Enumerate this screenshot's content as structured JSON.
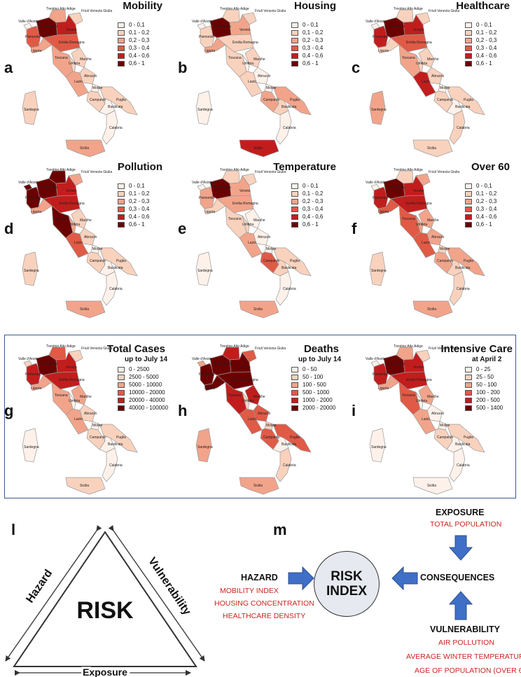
{
  "colors": {
    "c0": "#fdf1ea",
    "c1": "#f9d2bd",
    "c2": "#f2a48a",
    "c3": "#e05a46",
    "c4": "#c21d1d",
    "c5": "#6b0000",
    "frame": "#3c5a8c",
    "accent_red": "#c8251f",
    "arrow_blue": "#3f6fc6"
  },
  "region_names": [
    "Valle d'Aosta",
    "Trentino Alto Adige",
    "Friuli Venezia Giulia",
    "Lombardia",
    "Veneto",
    "Piemonte",
    "Liguria",
    "Emilia Romagna",
    "Toscana",
    "Marche",
    "Umbria",
    "Abruzzo",
    "Lazio",
    "Molise",
    "Campania",
    "Puglia",
    "Basilicata",
    "Calabria",
    "Sicilia",
    "Sardegna"
  ],
  "maps": [
    {
      "id": "mobility",
      "letter": "a",
      "title": "Mobility",
      "subtitle": "",
      "legend": [
        "0 - 0,1",
        "0,1 - 0,2",
        "0,2 - 0,3",
        "0,3 - 0,4",
        "0,4 - 0,6",
        "0,6 - 1"
      ],
      "values": {
        "VdA": 0,
        "TAA": 2,
        "FVG": 1,
        "LOM": 5,
        "VEN": 4,
        "PIE": 3,
        "LIG": 2,
        "EMR": 3,
        "TOS": 2,
        "MAR": 1,
        "UMB": 1,
        "ABR": 1,
        "LAZ": 2,
        "MOL": 0,
        "CAM": 1,
        "PUG": 1,
        "BAS": 0,
        "CAL": 0,
        "SIC": 2,
        "SAR": 1
      }
    },
    {
      "id": "housing",
      "letter": "b",
      "title": "Housing",
      "subtitle": "",
      "legend": [
        "0 - 0,1",
        "0,1 - 0,2",
        "0,2 - 0,3",
        "0,3 - 0,4",
        "0,4 - 0,6",
        "0,6 - 1"
      ],
      "values": {
        "VdA": 0,
        "TAA": 1,
        "FVG": 1,
        "LOM": 5,
        "VEN": 2,
        "PIE": 1,
        "LIG": 2,
        "EMR": 1,
        "TOS": 1,
        "MAR": 1,
        "UMB": 0,
        "ABR": 0,
        "LAZ": 1,
        "MOL": 0,
        "CAM": 2,
        "PUG": 2,
        "BAS": 1,
        "CAL": 0,
        "SIC": 4,
        "SAR": 0
      }
    },
    {
      "id": "healthcare",
      "letter": "c",
      "title": "Healthcare",
      "subtitle": "",
      "legend": [
        "0 - 0,1",
        "0,1 - 0,2",
        "0,2 - 0,3",
        "0,3 - 0,4",
        "0,4 - 0,6",
        "0,6 - 1"
      ],
      "values": {
        "VdA": 0,
        "TAA": 1,
        "FVG": 1,
        "LOM": 5,
        "VEN": 4,
        "PIE": 4,
        "LIG": 1,
        "EMR": 3,
        "TOS": 2,
        "MAR": 1,
        "UMB": 1,
        "ABR": 1,
        "LAZ": 4,
        "MOL": 0,
        "CAM": 1,
        "PUG": 1,
        "BAS": 0,
        "CAL": 1,
        "SIC": 1,
        "SAR": 2
      }
    },
    {
      "id": "pollution",
      "letter": "d",
      "title": "Pollution",
      "subtitle": "",
      "legend": [
        "0 - 0,1",
        "0,1 - 0,2",
        "0,2 - 0,3",
        "0,3 - 0,4",
        "0,4 - 0,6",
        "0,6 - 1"
      ],
      "values": {
        "VdA": 5,
        "TAA": 5,
        "FVG": 2,
        "LOM": 5,
        "VEN": 4,
        "PIE": 5,
        "LIG": 2,
        "EMR": 4,
        "TOS": 5,
        "MAR": 1,
        "UMB": 2,
        "ABR": 1,
        "LAZ": 3,
        "MOL": 0,
        "CAM": 1,
        "PUG": 1,
        "BAS": 0,
        "CAL": 0,
        "SIC": 2,
        "SAR": 1
      }
    },
    {
      "id": "temperature",
      "letter": "e",
      "title": "Temperature",
      "subtitle": "",
      "legend": [
        "0 - 0,1",
        "0,1 - 0,2",
        "0,2 - 0,3",
        "0,3 - 0,4",
        "0,4 - 0,6",
        "0,6 - 1"
      ],
      "values": {
        "VdA": 0,
        "TAA": 1,
        "FVG": 1,
        "LOM": 5,
        "VEN": 2,
        "PIE": 2,
        "LIG": 1,
        "EMR": 2,
        "TOS": 1,
        "MAR": 0,
        "UMB": 1,
        "ABR": 0,
        "LAZ": 2,
        "MOL": 0,
        "CAM": 3,
        "PUG": 1,
        "BAS": 1,
        "CAL": 0,
        "SIC": 2,
        "SAR": 0
      }
    },
    {
      "id": "over60",
      "letter": "f",
      "title": "Over 60",
      "subtitle": "",
      "legend": [
        "0 - 0,1",
        "0,1 - 0,2",
        "0,2 - 0,3",
        "0,3 - 0,4",
        "0,4 - 0,6",
        "0,6 - 1"
      ],
      "values": {
        "VdA": 0,
        "TAA": 1,
        "FVG": 2,
        "LOM": 5,
        "VEN": 4,
        "PIE": 4,
        "LIG": 3,
        "EMR": 4,
        "TOS": 3,
        "MAR": 2,
        "UMB": 2,
        "ABR": 2,
        "LAZ": 3,
        "MOL": 1,
        "CAM": 2,
        "PUG": 2,
        "BAS": 1,
        "CAL": 1,
        "SIC": 2,
        "SAR": 1
      }
    },
    {
      "id": "cases",
      "letter": "g",
      "title": "Total Cases",
      "subtitle": "up to July 14",
      "legend": [
        "0 - 2500",
        "2500 - 5000",
        "5000 - 10000",
        "10000 - 20000",
        "20000 - 40000",
        "40000 - 100000"
      ],
      "values": {
        "VdA": 1,
        "TAA": 3,
        "FVG": 1,
        "LOM": 5,
        "VEN": 4,
        "PIE": 4,
        "LIG": 2,
        "EMR": 4,
        "TOS": 2,
        "MAR": 2,
        "UMB": 0,
        "ABR": 1,
        "LAZ": 2,
        "MOL": 0,
        "CAM": 1,
        "PUG": 1,
        "BAS": 0,
        "CAL": 0,
        "SIC": 1,
        "SAR": 0
      }
    },
    {
      "id": "deaths",
      "letter": "h",
      "title": "Deaths",
      "subtitle": "up to July 14",
      "legend": [
        "0 - 50",
        "50 - 100",
        "100 - 500",
        "500 - 1000",
        "1000 - 2000",
        "2000 - 20000"
      ],
      "values": {
        "VdA": 2,
        "TAA": 4,
        "FVG": 3,
        "LOM": 5,
        "VEN": 5,
        "PIE": 5,
        "LIG": 5,
        "EMR": 5,
        "TOS": 4,
        "MAR": 4,
        "UMB": 1,
        "ABR": 3,
        "LAZ": 3,
        "MOL": 1,
        "CAM": 3,
        "PUG": 3,
        "BAS": 0,
        "CAL": 1,
        "SIC": 2,
        "SAR": 2
      }
    },
    {
      "id": "icu",
      "letter": "i",
      "title": "Intensive Care",
      "subtitle": "at April 2",
      "legend": [
        "0 - 25",
        "25 - 50",
        "50 - 100",
        "100 - 200",
        "200 - 500",
        "500 - 1400"
      ],
      "values": {
        "VdA": 0,
        "TAA": 2,
        "FVG": 1,
        "LOM": 5,
        "VEN": 4,
        "PIE": 4,
        "LIG": 2,
        "EMR": 4,
        "TOS": 3,
        "MAR": 2,
        "UMB": 0,
        "ABR": 0,
        "LAZ": 2,
        "MOL": 0,
        "CAM": 1,
        "PUG": 1,
        "BAS": 0,
        "CAL": 0,
        "SIC": 0,
        "SAR": 0
      }
    }
  ],
  "diagram": {
    "letter_l": "l",
    "letter_m": "m",
    "triangle": {
      "center": "RISK",
      "left": "Hazard",
      "right": "Vulnerability",
      "bottom": "Exposure"
    },
    "risk_index": [
      "RISK",
      "INDEX"
    ],
    "hazard": {
      "head": "HAZARD",
      "items": [
        "MOBILITY INDEX",
        "HOUSING CONCENTRATION",
        "HEALTHCARE DENSITY"
      ]
    },
    "exposure": {
      "head": "EXPOSURE",
      "items": [
        "TOTAL POPULATION"
      ]
    },
    "consequences": "CONSEQUENCES",
    "vulnerability": {
      "head": "VULNERABILITY",
      "items": [
        "AIR POLLUTION",
        "AVERAGE WINTER TEMPERATURE",
        "AGE OF POPULATION (OVER 60)"
      ]
    }
  }
}
